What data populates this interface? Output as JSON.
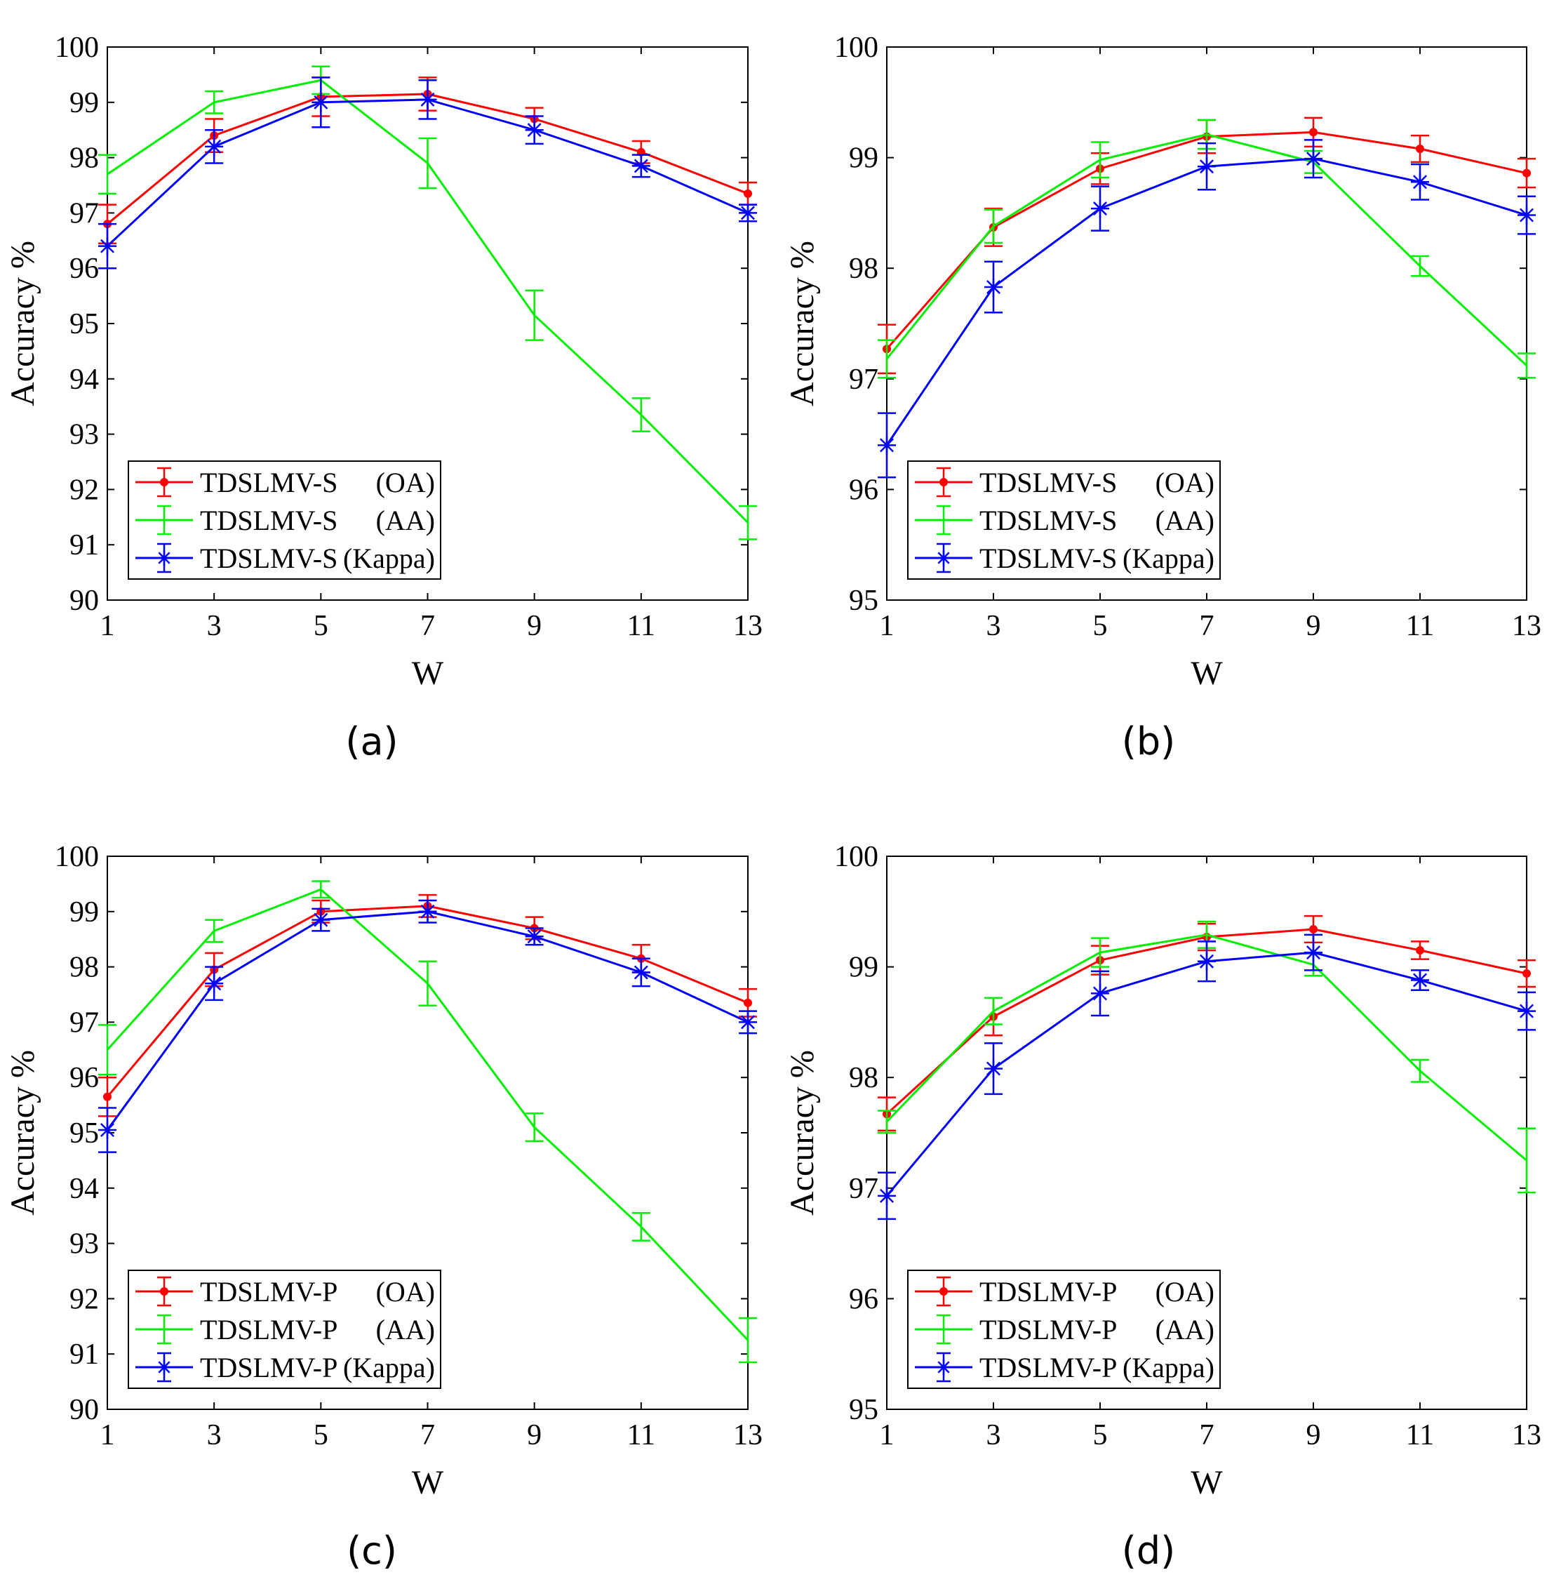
{
  "colors": {
    "OA": "#ff0000",
    "AA": "#00ee00",
    "Kappa": "#0000ff"
  },
  "chart_data": [
    {
      "type": "line",
      "caption": "(a)",
      "xlabel": "W",
      "ylabel": "Accuracy %",
      "x": [
        1,
        3,
        5,
        7,
        9,
        11,
        13
      ],
      "xticks": [
        "1",
        "3",
        "5",
        "7",
        "9",
        "11",
        "13"
      ],
      "ylim": [
        90,
        100
      ],
      "yticks": [
        "90",
        "91",
        "92",
        "93",
        "94",
        "95",
        "96",
        "97",
        "98",
        "99",
        "100"
      ],
      "legend_position": "bottom-left",
      "series": [
        {
          "name": "TDSLMV-S (OA)",
          "legend_main": "TDSLMV-S",
          "legend_tag": "(OA)",
          "key": "OA",
          "marker": "dot",
          "values": [
            96.8,
            98.4,
            99.1,
            99.15,
            98.7,
            98.1,
            97.35
          ],
          "err": [
            0.35,
            0.3,
            0.35,
            0.3,
            0.2,
            0.2,
            0.2
          ]
        },
        {
          "name": "TDSLMV-S (AA)",
          "legend_main": "TDSLMV-S",
          "legend_tag": "(AA)",
          "key": "AA",
          "marker": "none",
          "values": [
            97.7,
            99.0,
            99.4,
            97.9,
            95.15,
            93.35,
            91.4
          ],
          "err": [
            0.35,
            0.2,
            0.25,
            0.45,
            0.45,
            0.3,
            0.3
          ]
        },
        {
          "name": "TDSLMV-S (Kappa)",
          "legend_main": "TDSLMV-S",
          "legend_tag": "(Kappa)",
          "key": "Kappa",
          "marker": "star",
          "values": [
            96.4,
            98.2,
            99.0,
            99.05,
            98.5,
            97.85,
            97.0
          ],
          "err": [
            0.4,
            0.3,
            0.45,
            0.35,
            0.25,
            0.2,
            0.15
          ]
        }
      ]
    },
    {
      "type": "line",
      "caption": "(b)",
      "xlabel": "W",
      "ylabel": "Accuracy %",
      "x": [
        1,
        3,
        5,
        7,
        9,
        11,
        13
      ],
      "xticks": [
        "1",
        "3",
        "5",
        "7",
        "9",
        "11",
        "13"
      ],
      "ylim": [
        95,
        100
      ],
      "yticks": [
        "95",
        "96",
        "97",
        "98",
        "99",
        "100"
      ],
      "legend_position": "bottom-left",
      "series": [
        {
          "name": "TDSLMV-S (OA)",
          "legend_main": "TDSLMV-S",
          "legend_tag": "(OA)",
          "key": "OA",
          "marker": "dot",
          "values": [
            97.27,
            98.37,
            98.9,
            99.19,
            99.23,
            99.08,
            98.86
          ],
          "err": [
            0.22,
            0.17,
            0.14,
            0.15,
            0.13,
            0.12,
            0.13
          ]
        },
        {
          "name": "TDSLMV-S (AA)",
          "legend_main": "TDSLMV-S",
          "legend_tag": "(AA)",
          "key": "AA",
          "marker": "none",
          "values": [
            97.18,
            98.38,
            98.98,
            99.21,
            98.96,
            98.02,
            97.12
          ],
          "err": [
            0.17,
            0.15,
            0.16,
            0.13,
            0.1,
            0.09,
            0.11
          ]
        },
        {
          "name": "TDSLMV-S (Kappa)",
          "legend_main": "TDSLMV-S",
          "legend_tag": "(Kappa)",
          "key": "Kappa",
          "marker": "star",
          "values": [
            96.4,
            97.83,
            98.54,
            98.92,
            98.99,
            98.78,
            98.48
          ],
          "err": [
            0.29,
            0.23,
            0.2,
            0.21,
            0.17,
            0.16,
            0.17
          ]
        }
      ]
    },
    {
      "type": "line",
      "caption": "(c)",
      "xlabel": "W",
      "ylabel": "Accuracy %",
      "x": [
        1,
        3,
        5,
        7,
        9,
        11,
        13
      ],
      "xticks": [
        "1",
        "3",
        "5",
        "7",
        "9",
        "11",
        "13"
      ],
      "ylim": [
        90,
        100
      ],
      "yticks": [
        "90",
        "91",
        "92",
        "93",
        "94",
        "95",
        "96",
        "97",
        "98",
        "99",
        "100"
      ],
      "legend_position": "bottom-left",
      "series": [
        {
          "name": "TDSLMV-P (OA)",
          "legend_main": "TDSLMV-P",
          "legend_tag": "(OA)",
          "key": "OA",
          "marker": "dot",
          "values": [
            95.65,
            97.95,
            99.0,
            99.1,
            98.7,
            98.15,
            97.35
          ],
          "err": [
            0.35,
            0.3,
            0.2,
            0.2,
            0.2,
            0.25,
            0.25
          ]
        },
        {
          "name": "TDSLMV-P (AA)",
          "legend_main": "TDSLMV-P",
          "legend_tag": "(AA)",
          "key": "AA",
          "marker": "none",
          "values": [
            96.5,
            98.65,
            99.4,
            97.7,
            95.1,
            93.3,
            91.25
          ],
          "err": [
            0.45,
            0.2,
            0.15,
            0.4,
            0.25,
            0.25,
            0.4
          ]
        },
        {
          "name": "TDSLMV-P (Kappa)",
          "legend_main": "TDSLMV-P",
          "legend_tag": "(Kappa)",
          "key": "Kappa",
          "marker": "star",
          "values": [
            95.05,
            97.7,
            98.85,
            99.0,
            98.55,
            97.9,
            97.0
          ],
          "err": [
            0.4,
            0.3,
            0.2,
            0.2,
            0.15,
            0.25,
            0.2
          ]
        }
      ]
    },
    {
      "type": "line",
      "caption": "(d)",
      "xlabel": "W",
      "ylabel": "Accuracy %",
      "x": [
        1,
        3,
        5,
        7,
        9,
        11,
        13
      ],
      "xticks": [
        "1",
        "3",
        "5",
        "7",
        "9",
        "11",
        "13"
      ],
      "ylim": [
        95,
        100
      ],
      "yticks": [
        "95",
        "96",
        "97",
        "98",
        "99",
        "100"
      ],
      "legend_position": "bottom-left",
      "series": [
        {
          "name": "TDSLMV-P (OA)",
          "legend_main": "TDSLMV-P",
          "legend_tag": "(OA)",
          "key": "OA",
          "marker": "dot",
          "values": [
            97.67,
            98.55,
            99.06,
            99.27,
            99.34,
            99.15,
            98.94
          ],
          "err": [
            0.15,
            0.17,
            0.13,
            0.12,
            0.12,
            0.08,
            0.12
          ]
        },
        {
          "name": "TDSLMV-P (AA)",
          "legend_main": "TDSLMV-P",
          "legend_tag": "(AA)",
          "key": "AA",
          "marker": "none",
          "values": [
            97.6,
            98.6,
            99.13,
            99.29,
            99.02,
            98.06,
            97.25
          ],
          "err": [
            0.1,
            0.12,
            0.13,
            0.12,
            0.1,
            0.1,
            0.29
          ]
        },
        {
          "name": "TDSLMV-P (Kappa)",
          "legend_main": "TDSLMV-P",
          "legend_tag": "(Kappa)",
          "key": "Kappa",
          "marker": "star",
          "values": [
            96.93,
            98.08,
            98.76,
            99.05,
            99.13,
            98.88,
            98.6
          ],
          "err": [
            0.21,
            0.23,
            0.2,
            0.18,
            0.16,
            0.09,
            0.17
          ]
        }
      ]
    }
  ]
}
